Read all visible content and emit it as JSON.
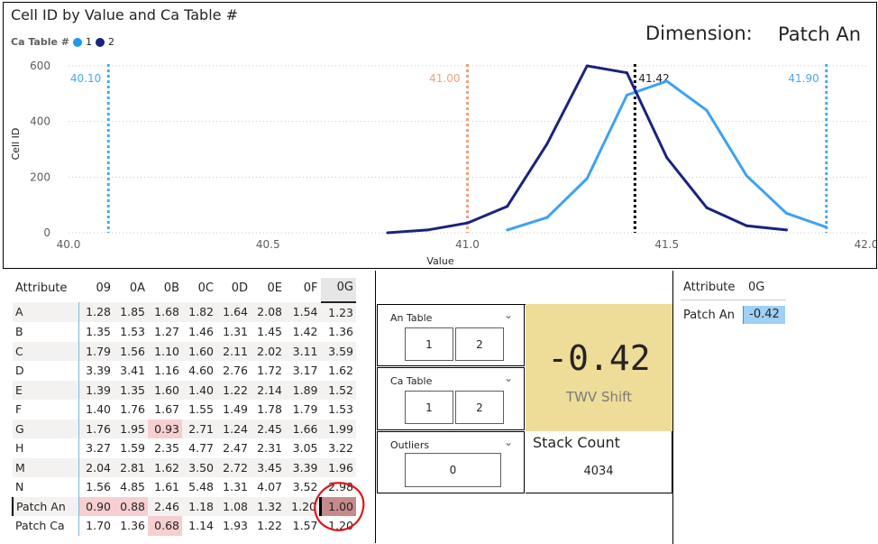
{
  "chart": {
    "title": "Cell ID by Value and Ca Table #",
    "legend_title": "Ca Table #",
    "legend_items": [
      {
        "label": "1",
        "color": "#2196f3"
      },
      {
        "label": "2",
        "color": "#1a237e"
      }
    ],
    "dimension_label": "Dimension:",
    "dimension_value": "Patch An"
  },
  "chart_data": {
    "type": "line",
    "xlabel": "Value",
    "ylabel": "Cell ID",
    "xlim": [
      40.0,
      42.0
    ],
    "ylim": [
      0,
      600
    ],
    "xticks": [
      "40.0",
      "40.5",
      "41.0",
      "41.5",
      "42.0"
    ],
    "yticks": [
      "0",
      "200",
      "400",
      "600"
    ],
    "series": [
      {
        "name": "1",
        "color": "#3ea2f0",
        "x": [
          41.1,
          41.2,
          41.3,
          41.4,
          41.5,
          41.6,
          41.7,
          41.8,
          41.9
        ],
        "y": [
          10,
          55,
          195,
          495,
          545,
          440,
          205,
          70,
          20
        ]
      },
      {
        "name": "2",
        "color": "#1a237e",
        "x": [
          40.8,
          40.9,
          41.0,
          41.1,
          41.2,
          41.3,
          41.4,
          41.5,
          41.6,
          41.7,
          41.8
        ],
        "y": [
          0,
          10,
          35,
          95,
          320,
          600,
          575,
          270,
          90,
          25,
          10
        ]
      }
    ],
    "reference_lines": [
      {
        "x": 40.1,
        "label": "40.10",
        "color": "#4aa8f0",
        "width": 3
      },
      {
        "x": 41.0,
        "label": "41.00",
        "color": "#f0a080",
        "width": 3
      },
      {
        "x": 41.42,
        "label": "41.42",
        "color": "#000000",
        "width": 3
      },
      {
        "x": 41.9,
        "label": "41.90",
        "color": "#4aa8f0",
        "width": 3
      }
    ]
  },
  "matrix": {
    "header_label": "Attribute",
    "columns": [
      "09",
      "0A",
      "0B",
      "0C",
      "0D",
      "0E",
      "0F",
      "0G"
    ],
    "rows": [
      {
        "label": "A",
        "values": [
          "1.28",
          "1.85",
          "1.68",
          "1.82",
          "1.64",
          "2.08",
          "1.54",
          "1.23"
        ]
      },
      {
        "label": "B",
        "values": [
          "1.35",
          "1.53",
          "1.27",
          "1.46",
          "1.31",
          "1.45",
          "1.42",
          "1.36"
        ]
      },
      {
        "label": "C",
        "values": [
          "1.79",
          "1.56",
          "1.10",
          "1.60",
          "2.11",
          "2.02",
          "3.11",
          "3.59"
        ]
      },
      {
        "label": "D",
        "values": [
          "3.39",
          "3.41",
          "1.16",
          "4.60",
          "2.76",
          "1.72",
          "3.17",
          "1.62"
        ]
      },
      {
        "label": "E",
        "values": [
          "1.39",
          "1.35",
          "1.60",
          "1.40",
          "1.22",
          "2.14",
          "1.89",
          "1.52"
        ]
      },
      {
        "label": "F",
        "values": [
          "1.40",
          "1.76",
          "1.67",
          "1.55",
          "1.49",
          "1.78",
          "1.79",
          "1.53"
        ]
      },
      {
        "label": "G",
        "values": [
          "1.76",
          "1.95",
          "0.93",
          "2.71",
          "1.24",
          "2.45",
          "1.66",
          "1.99"
        ]
      },
      {
        "label": "H",
        "values": [
          "3.27",
          "1.59",
          "2.35",
          "4.77",
          "2.47",
          "2.31",
          "3.05",
          "3.22"
        ]
      },
      {
        "label": "M",
        "values": [
          "2.04",
          "2.81",
          "1.62",
          "3.50",
          "2.72",
          "3.45",
          "3.39",
          "1.96"
        ]
      },
      {
        "label": "N",
        "values": [
          "1.56",
          "4.85",
          "1.61",
          "5.48",
          "1.31",
          "4.07",
          "3.52",
          "2.98"
        ]
      },
      {
        "label": "Patch An",
        "values": [
          "0.90",
          "0.88",
          "2.46",
          "1.18",
          "1.08",
          "1.32",
          "1.20",
          "1.00"
        ]
      },
      {
        "label": "Patch Ca",
        "values": [
          "1.70",
          "1.36",
          "0.68",
          "1.14",
          "1.93",
          "1.22",
          "1.57",
          "1.20"
        ]
      }
    ]
  },
  "slicers": {
    "an_table": {
      "title": "An Table",
      "options": [
        "1",
        "2"
      ]
    },
    "ca_table": {
      "title": "Ca Table",
      "options": [
        "1",
        "2"
      ]
    },
    "outliers": {
      "title": "Outliers",
      "value": "0"
    }
  },
  "kpi": {
    "value": "-0.42",
    "label": "TWV Shift"
  },
  "stack": {
    "title": "Stack Count",
    "value": "4034"
  },
  "right_table": {
    "header_label": "Attribute",
    "header_col": "0G",
    "row_label": "Patch An",
    "row_value": "-0.42"
  }
}
